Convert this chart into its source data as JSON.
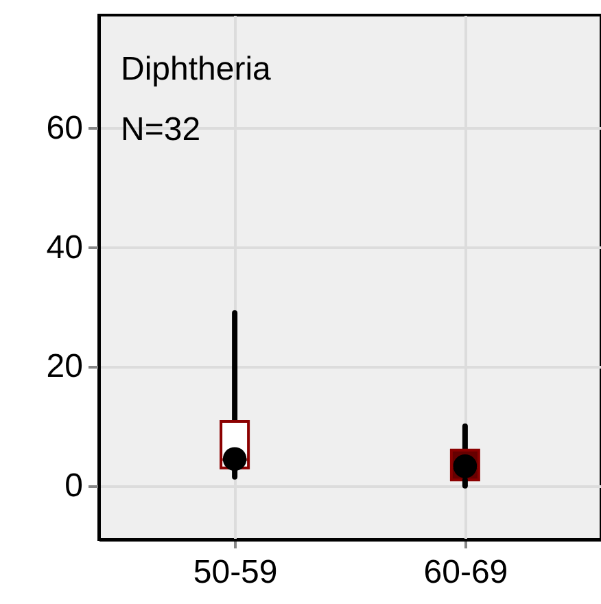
{
  "chart_data": {
    "type": "box",
    "categories": [
      "50-59",
      "60-69"
    ],
    "boxes": [
      {
        "low": 1.5,
        "q1": 3,
        "median": 4.4,
        "mean": 4.5,
        "q3": 10.8,
        "high": 29
      },
      {
        "low": 0,
        "q1": 1,
        "median": 3.2,
        "mean": 3.3,
        "q3": 6,
        "high": 10
      }
    ],
    "colors": [
      "#ffffff",
      "#660000"
    ],
    "ylim": [
      -9,
      79
    ],
    "yticks": [
      0,
      20,
      40,
      60
    ],
    "grid": true,
    "annotations": [
      "Diphtheria",
      "N=32"
    ]
  }
}
